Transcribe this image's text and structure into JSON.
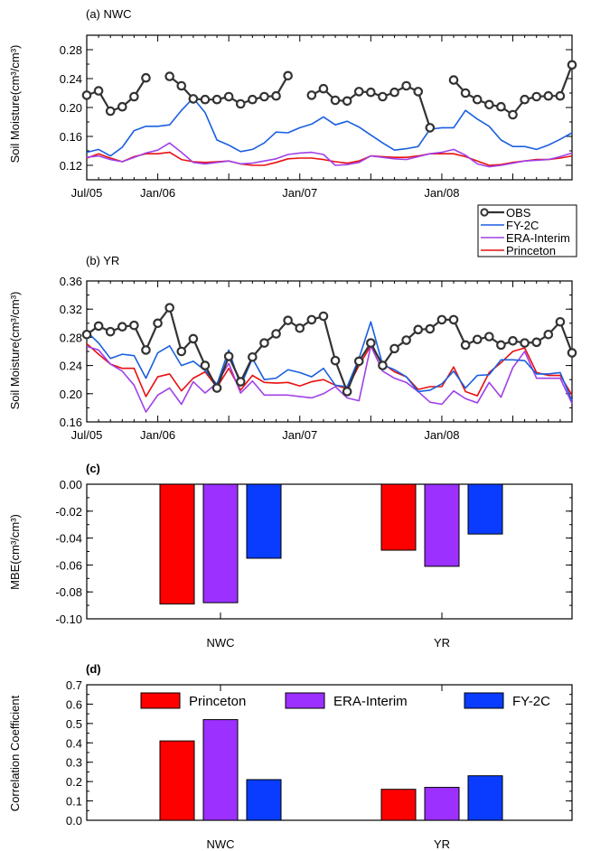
{
  "colors": {
    "obs": "#333333",
    "fy2c": "#1a5fe0",
    "era": "#a040e8",
    "princeton": "#e81010",
    "bar_princeton": "#ff0000",
    "bar_era": "#9b30ff",
    "bar_fy2c": "#0a3cff"
  },
  "chart_data": [
    {
      "id": "a",
      "type": "line",
      "panel_label": "(a) NWC",
      "ylabel": "Soil Moisture(cm³/cm³)",
      "ylim": [
        0.1,
        0.3
      ],
      "yticks": [
        "0.12",
        "0.16",
        "0.20",
        "0.24",
        "0.28"
      ],
      "xticks": [
        "Jul/05",
        "Jan/06",
        "Jan/07",
        "Jan/08"
      ],
      "x": [
        "2005-07",
        "2005-08",
        "2005-09",
        "2005-10",
        "2005-11",
        "2005-12",
        "2006-01",
        "2006-02",
        "2006-03",
        "2006-04",
        "2006-05",
        "2006-06",
        "2006-07",
        "2006-08",
        "2006-09",
        "2006-10",
        "2006-11",
        "2006-12",
        "2007-01",
        "2007-02",
        "2007-03",
        "2007-04",
        "2007-05",
        "2007-06",
        "2007-07",
        "2007-08",
        "2007-09",
        "2007-10",
        "2007-11",
        "2007-12",
        "2008-01",
        "2008-02",
        "2008-03",
        "2008-04",
        "2008-05",
        "2008-06",
        "2008-07",
        "2008-08",
        "2008-09",
        "2008-10",
        "2008-11",
        "2008-12"
      ],
      "series": [
        {
          "name": "OBS",
          "values": [
            0.217,
            0.223,
            0.195,
            0.201,
            0.215,
            0.241,
            null,
            0.243,
            0.23,
            0.212,
            0.211,
            0.211,
            0.215,
            0.205,
            0.211,
            0.215,
            0.216,
            0.244,
            null,
            0.217,
            0.226,
            0.21,
            0.209,
            0.222,
            0.221,
            0.215,
            0.221,
            0.23,
            0.222,
            0.172,
            null,
            0.238,
            0.22,
            0.211,
            0.204,
            0.201,
            0.19,
            0.211,
            0.215,
            0.216,
            0.216,
            0.259
          ]
        },
        {
          "name": "FY-2C",
          "values": [
            0.138,
            0.142,
            0.133,
            0.145,
            0.168,
            0.174,
            0.174,
            0.176,
            0.196,
            0.213,
            0.193,
            0.155,
            0.148,
            0.139,
            0.142,
            0.151,
            0.166,
            0.165,
            0.172,
            0.177,
            0.187,
            0.176,
            0.181,
            0.173,
            0.162,
            0.151,
            0.141,
            0.143,
            0.146,
            0.17,
            0.172,
            0.172,
            0.196,
            0.184,
            0.174,
            0.155,
            0.146,
            0.146,
            0.142,
            0.148,
            0.156,
            0.165
          ]
        },
        {
          "name": "ERA-Interim",
          "values": [
            0.131,
            0.133,
            0.128,
            0.125,
            0.131,
            0.137,
            0.141,
            0.151,
            0.138,
            0.124,
            0.122,
            0.124,
            0.126,
            0.122,
            0.123,
            0.126,
            0.129,
            0.135,
            0.137,
            0.138,
            0.135,
            0.12,
            0.121,
            0.124,
            0.133,
            0.131,
            0.129,
            0.128,
            0.132,
            0.136,
            0.138,
            0.142,
            0.134,
            0.122,
            0.118,
            0.12,
            0.123,
            0.126,
            0.127,
            0.128,
            0.132,
            0.137
          ]
        },
        {
          "name": "Princeton",
          "values": [
            0.13,
            0.136,
            0.13,
            0.125,
            0.132,
            0.136,
            0.136,
            0.138,
            0.128,
            0.125,
            0.124,
            0.125,
            0.126,
            0.122,
            0.12,
            0.12,
            0.124,
            0.129,
            0.13,
            0.13,
            0.128,
            0.125,
            0.123,
            0.126,
            0.133,
            0.132,
            0.131,
            0.131,
            0.133,
            0.136,
            0.136,
            0.136,
            0.132,
            0.126,
            0.12,
            0.121,
            0.124,
            0.126,
            0.128,
            0.128,
            0.13,
            0.133
          ]
        }
      ],
      "legend": {
        "entries": [
          "OBS",
          "FY-2C",
          "ERA-Interim",
          "Princeton"
        ],
        "placement": "bottom-right, below panel"
      }
    },
    {
      "id": "b",
      "type": "line",
      "panel_label": "(b) YR",
      "ylabel": "Soil Moisture(cm³/cm³)",
      "ylim": [
        0.16,
        0.36
      ],
      "yticks": [
        "0.16",
        "0.20",
        "0.24",
        "0.28",
        "0.32",
        "0.36"
      ],
      "xticks": [
        "Jul/05",
        "Jan/06",
        "Jan/07",
        "Jan/08"
      ],
      "x": [
        "2005-07",
        "2005-08",
        "2005-09",
        "2005-10",
        "2005-11",
        "2005-12",
        "2006-01",
        "2006-02",
        "2006-03",
        "2006-04",
        "2006-05",
        "2006-06",
        "2006-07",
        "2006-08",
        "2006-09",
        "2006-10",
        "2006-11",
        "2006-12",
        "2007-01",
        "2007-02",
        "2007-03",
        "2007-04",
        "2007-05",
        "2007-06",
        "2007-07",
        "2007-08",
        "2007-09",
        "2007-10",
        "2007-11",
        "2007-12",
        "2008-01",
        "2008-02",
        "2008-03",
        "2008-04",
        "2008-05",
        "2008-06",
        "2008-07",
        "2008-08",
        "2008-09",
        "2008-10",
        "2008-11",
        "2008-12"
      ],
      "series": [
        {
          "name": "OBS",
          "values": [
            0.284,
            0.296,
            0.288,
            0.295,
            0.297,
            0.262,
            0.3,
            0.322,
            0.26,
            0.278,
            0.24,
            0.208,
            0.253,
            0.217,
            0.252,
            0.272,
            0.285,
            0.304,
            0.293,
            0.305,
            0.31,
            0.247,
            0.203,
            0.246,
            0.272,
            0.24,
            0.264,
            0.276,
            0.291,
            0.292,
            0.305,
            0.305,
            0.269,
            0.277,
            0.281,
            0.269,
            0.275,
            0.272,
            0.273,
            0.284,
            0.302,
            0.258
          ]
        },
        {
          "name": "FY-2C",
          "values": [
            0.288,
            0.272,
            0.25,
            0.256,
            0.254,
            0.222,
            0.258,
            0.268,
            0.24,
            0.246,
            0.233,
            0.213,
            0.262,
            0.211,
            0.25,
            0.22,
            0.222,
            0.234,
            0.23,
            0.224,
            0.236,
            0.212,
            0.21,
            0.25,
            0.302,
            0.241,
            0.234,
            0.224,
            0.203,
            0.205,
            0.214,
            0.232,
            0.208,
            0.226,
            0.227,
            0.248,
            0.248,
            0.247,
            0.228,
            0.228,
            0.23,
            0.19
          ]
        },
        {
          "name": "ERA-Interim",
          "values": [
            0.267,
            0.262,
            0.242,
            0.232,
            0.212,
            0.174,
            0.198,
            0.208,
            0.185,
            0.217,
            0.201,
            0.215,
            0.243,
            0.201,
            0.218,
            0.198,
            0.198,
            0.198,
            0.196,
            0.194,
            0.2,
            0.21,
            0.194,
            0.19,
            0.268,
            0.232,
            0.222,
            0.216,
            0.203,
            0.188,
            0.185,
            0.204,
            0.193,
            0.187,
            0.216,
            0.195,
            0.237,
            0.26,
            0.222,
            0.222,
            0.222,
            0.186
          ]
        },
        {
          "name": "Princeton",
          "values": [
            0.271,
            0.256,
            0.242,
            0.236,
            0.236,
            0.196,
            0.224,
            0.228,
            0.204,
            0.222,
            0.231,
            0.209,
            0.236,
            0.205,
            0.226,
            0.216,
            0.215,
            0.216,
            0.211,
            0.217,
            0.22,
            0.212,
            0.207,
            0.24,
            0.268,
            0.243,
            0.231,
            0.224,
            0.206,
            0.21,
            0.21,
            0.238,
            0.203,
            0.197,
            0.23,
            0.244,
            0.26,
            0.265,
            0.23,
            0.226,
            0.226,
            0.198
          ]
        }
      ]
    },
    {
      "id": "c",
      "type": "bar",
      "panel_label": "(c)",
      "ylabel": "MBE(cm³/cm³)",
      "ylim": [
        -0.1,
        0.0
      ],
      "yticks": [
        "-0.10",
        "-0.08",
        "-0.06",
        "-0.04",
        "-0.02",
        "0.00"
      ],
      "categories": [
        "NWC",
        "YR"
      ],
      "series": [
        {
          "name": "Princeton",
          "values": [
            -0.089,
            -0.049
          ]
        },
        {
          "name": "ERA-Interim",
          "values": [
            -0.088,
            -0.061
          ]
        },
        {
          "name": "FY-2C",
          "values": [
            -0.055,
            -0.037
          ]
        }
      ]
    },
    {
      "id": "d",
      "type": "bar",
      "panel_label": "(d)",
      "ylabel": "Correlation Coefficient",
      "ylim": [
        0.0,
        0.7
      ],
      "yticks": [
        "0.0",
        "0.1",
        "0.2",
        "0.3",
        "0.4",
        "0.5",
        "0.6",
        "0.7"
      ],
      "categories": [
        "NWC",
        "YR"
      ],
      "series": [
        {
          "name": "Princeton",
          "values": [
            0.41,
            0.16
          ]
        },
        {
          "name": "ERA-Interim",
          "values": [
            0.52,
            0.17
          ]
        },
        {
          "name": "FY-2C",
          "values": [
            0.21,
            0.23
          ]
        }
      ],
      "legend": {
        "entries": [
          "Princeton",
          "ERA-Interim",
          "FY-2C"
        ],
        "placement": "top, inside panel"
      }
    }
  ]
}
